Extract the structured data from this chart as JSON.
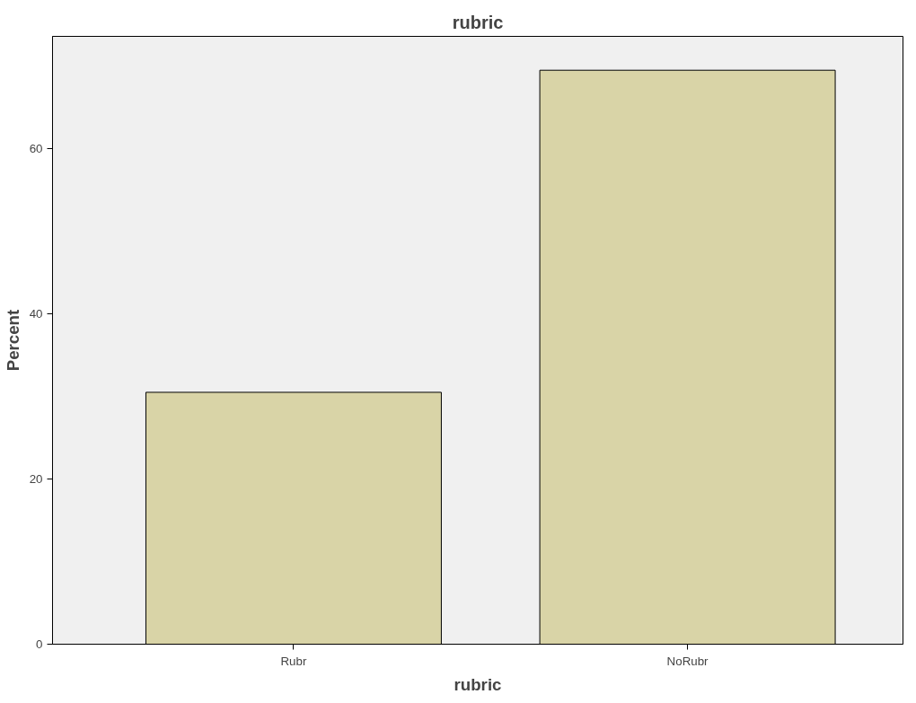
{
  "chart_data": {
    "type": "bar",
    "title": "rubric",
    "xlabel": "rubric",
    "ylabel": "Percent",
    "categories": [
      "Rubr",
      "NoRubr"
    ],
    "values": [
      30.5,
      69.5
    ],
    "color": "#d9d4a7",
    "ylim": [
      0,
      73.6
    ],
    "yticks": [
      0,
      20,
      40,
      60
    ],
    "grid": false
  }
}
